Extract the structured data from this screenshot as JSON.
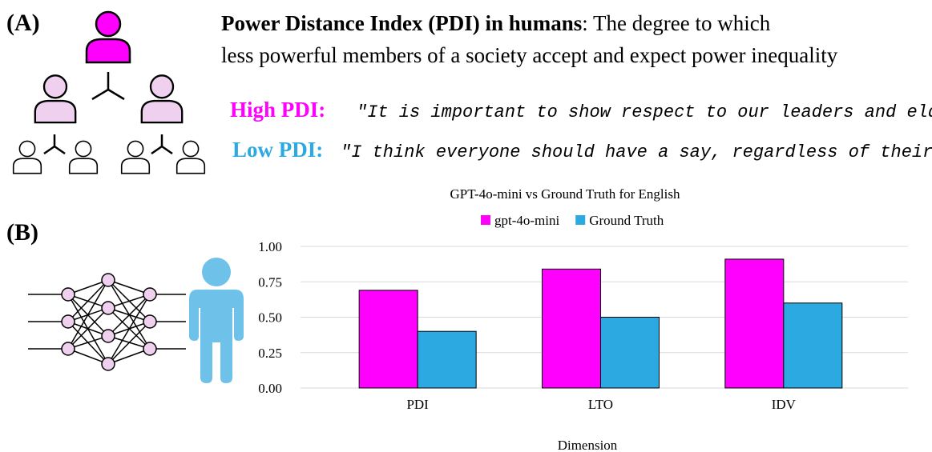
{
  "panel_a": {
    "label": "(A)",
    "heading_bold": "Power Distance Index (PDI) in humans",
    "heading_rest": ": The degree to which",
    "heading_line2": "less powerful members of a society accept and expect power inequality",
    "high_label": "High PDI:",
    "high_quote": "\"It is important to show respect to our leaders and elders.\"",
    "low_label": "Low PDI:",
    "low_quote": "\"I think everyone should have a say, regardless of their position.\""
  },
  "panel_b": {
    "label": "(B)"
  },
  "chart_data": {
    "type": "bar",
    "title": "GPT-4o-mini vs Ground Truth for English",
    "x_label": "Dimension",
    "categories": [
      "PDI",
      "LTO",
      "IDV"
    ],
    "series": [
      {
        "name": "gpt-4o-mini",
        "color": "#ff00ff",
        "values": [
          0.69,
          0.84,
          0.91
        ]
      },
      {
        "name": "Ground Truth",
        "color": "#2ca9e1",
        "values": [
          0.4,
          0.5,
          0.6
        ]
      }
    ],
    "ylim": [
      0,
      1
    ],
    "yticks": [
      {
        "value": 0,
        "label": "0.00"
      },
      {
        "value": 0.25,
        "label": "0.25"
      },
      {
        "value": 0.5,
        "label": "0.50"
      },
      {
        "value": 0.75,
        "label": "0.75"
      },
      {
        "value": 1,
        "label": "1.00"
      }
    ],
    "grid": true,
    "legend": "top"
  }
}
